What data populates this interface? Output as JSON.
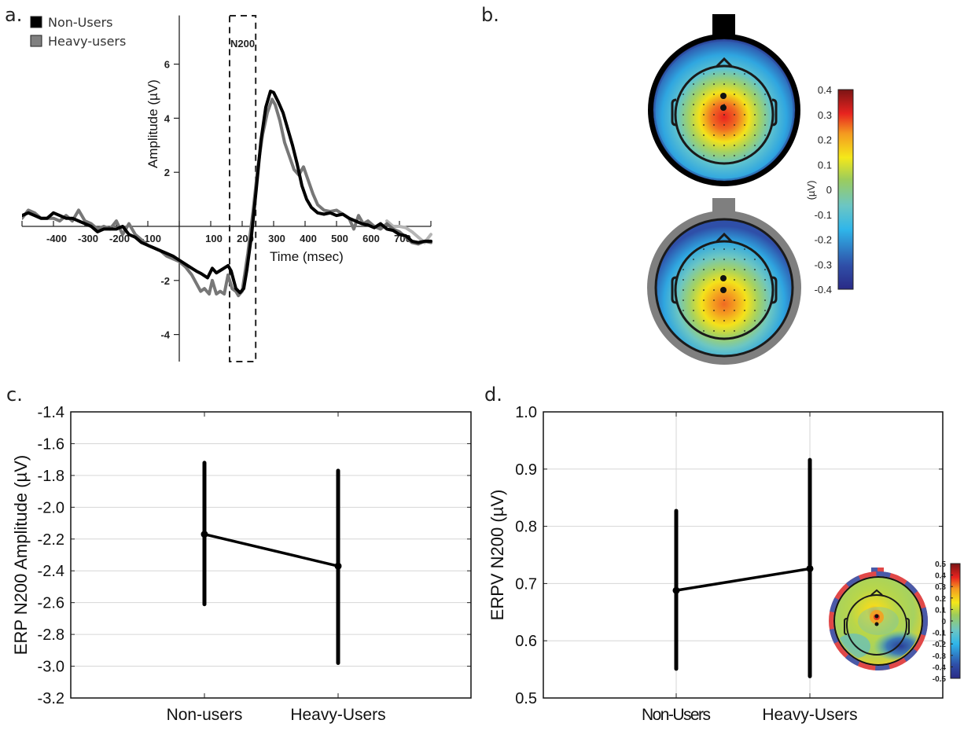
{
  "panels": {
    "a": "a.",
    "b": "b.",
    "c": "c.",
    "d": "d."
  },
  "chart_data": [
    {
      "id": "a",
      "type": "line",
      "title": "",
      "xlabel": "Time (msec)",
      "ylabel": "Amplitude (µV)",
      "xlim": [
        -500,
        800
      ],
      "ylim": [
        -5,
        7.8
      ],
      "xticks": [
        -500,
        -400,
        -300,
        -200,
        -100,
        0,
        100,
        200,
        300,
        400,
        500,
        600,
        700,
        800
      ],
      "xtick_labels": [
        "",
        "-400",
        "-300",
        "-200",
        "-100",
        "",
        "100",
        "200",
        "300",
        "400",
        "500",
        "600",
        "700",
        ""
      ],
      "yticks": [
        6,
        4,
        2,
        -2,
        -4
      ],
      "ytick_labels": [
        "6",
        "4",
        "2",
        "-2",
        "-4"
      ],
      "legend": {
        "position": "top-left",
        "entries": [
          {
            "name": "Non-Users",
            "color": "#000000"
          },
          {
            "name": "Heavy-users",
            "color": "#777777"
          }
        ]
      },
      "annotation": {
        "label": "N200",
        "window_ms": [
          160,
          243
        ]
      },
      "series": [
        {
          "name": "Non-Users",
          "color": "#000000",
          "x": [
            -500,
            -480,
            -460,
            -440,
            -420,
            -400,
            -380,
            -360,
            -340,
            -320,
            -300,
            -280,
            -260,
            -240,
            -220,
            -200,
            -180,
            -160,
            -140,
            -120,
            -100,
            -80,
            -60,
            -40,
            -20,
            0,
            20,
            40,
            55,
            70,
            90,
            105,
            118,
            135,
            155,
            165,
            180,
            193,
            205,
            215,
            230,
            245,
            260,
            275,
            290,
            300,
            315,
            330,
            345,
            360,
            375,
            390,
            405,
            420,
            440,
            460,
            480,
            500,
            520,
            540,
            560,
            580,
            600,
            620,
            640,
            660,
            680,
            700,
            720,
            740,
            760,
            780,
            800
          ],
          "y": [
            0.4,
            0.5,
            0.4,
            0.3,
            0.3,
            0.5,
            0.4,
            0.3,
            0.3,
            0.2,
            0.1,
            0.0,
            -0.2,
            -0.1,
            -0.1,
            -0.1,
            0.0,
            -0.3,
            -0.4,
            -0.6,
            -0.7,
            -0.8,
            -0.9,
            -1.0,
            -1.1,
            -1.25,
            -1.4,
            -1.55,
            -1.66,
            -1.75,
            -1.9,
            -1.55,
            -1.72,
            -1.6,
            -1.45,
            -1.65,
            -2.3,
            -2.45,
            -2.3,
            -1.6,
            -0.3,
            1.4,
            3.2,
            4.4,
            5.0,
            4.95,
            4.6,
            4.2,
            3.6,
            3.0,
            2.3,
            1.5,
            1.0,
            0.7,
            0.5,
            0.45,
            0.5,
            0.4,
            0.45,
            0.3,
            0.2,
            0.1,
            0.05,
            -0.05,
            0.1,
            -0.1,
            -0.15,
            -0.3,
            -0.35,
            -0.55,
            -0.6,
            -0.55,
            -0.55
          ]
        },
        {
          "name": "Heavy-users",
          "color": "#777777",
          "x": [
            -500,
            -480,
            -460,
            -440,
            -420,
            -400,
            -380,
            -360,
            -340,
            -320,
            -300,
            -280,
            -260,
            -240,
            -220,
            -200,
            -180,
            -160,
            -140,
            -120,
            -100,
            -80,
            -60,
            -40,
            -20,
            0,
            20,
            40,
            68,
            80,
            95,
            105,
            118,
            130,
            143,
            155,
            168,
            180,
            188,
            200,
            218,
            235,
            250,
            265,
            280,
            295,
            305,
            320,
            335,
            350,
            365,
            380,
            395,
            410,
            425,
            440,
            460,
            480,
            500,
            520,
            540,
            555,
            570,
            585,
            600,
            620,
            640,
            660
          ],
          "y": [
            0.3,
            0.6,
            0.5,
            0.3,
            0.3,
            0.3,
            0.2,
            0.4,
            0.2,
            0.6,
            0.2,
            0.1,
            -0.1,
            0.0,
            -0.1,
            0.2,
            -0.3,
            0.1,
            -0.3,
            -0.5,
            -0.7,
            -0.8,
            -0.9,
            -1.1,
            -1.2,
            -1.3,
            -1.5,
            -1.8,
            -2.4,
            -2.3,
            -2.5,
            -2.0,
            -2.5,
            -2.4,
            -2.5,
            -1.8,
            -2.3,
            -2.4,
            -2.56,
            -2.4,
            -1.0,
            0.6,
            2.2,
            3.4,
            4.2,
            4.7,
            4.5,
            3.9,
            3.1,
            2.6,
            2.1,
            1.9,
            2.2,
            1.7,
            1.2,
            0.8,
            0.6,
            0.55,
            0.6,
            0.45,
            0.3,
            -0.1,
            0.4,
            0.1,
            0.2,
            0.0,
            -0.1,
            0.1
          ]
        },
        {
          "name": "Heavy-users (tail, light)",
          "color": "#b5b5b5",
          "x": [
            660,
            680,
            700,
            720,
            740,
            760,
            780,
            800
          ],
          "y": [
            0.2,
            0.0,
            0.0,
            -0.05,
            -0.2,
            -0.4,
            -0.6,
            -0.3
          ]
        },
        {
          "name": "Heavy-users (tail, dark)",
          "color": "#6e6e6e",
          "x": [
            660,
            680,
            700,
            720,
            740,
            760,
            780,
            800
          ],
          "y": [
            0.1,
            -0.1,
            -0.2,
            -0.4,
            -0.6,
            -0.65,
            -0.55,
            -0.6
          ]
        }
      ]
    },
    {
      "id": "b",
      "type": "heatmap",
      "title": "",
      "description": "Scalp topographies (top: Non-Users, bottom: Heavy-users)",
      "colorbar": {
        "label": "(µV)",
        "range": [
          -0.4,
          0.4
        ],
        "ticks": [
          "0.4",
          "0.3",
          "0.2",
          "0.1",
          "0",
          "-0.1",
          "-0.2",
          "-0.3",
          "-0.4"
        ]
      },
      "maps": [
        {
          "group": "Non-Users",
          "ring_color": "#000000",
          "peak_value": 0.32,
          "peak_location": "central-parietal",
          "edge_value": -0.3
        },
        {
          "group": "Heavy-users",
          "ring_color": "#7f7f7f",
          "peak_value": 0.25,
          "peak_location": "central-parietal",
          "edge_value": -0.3
        }
      ]
    },
    {
      "id": "c",
      "type": "line",
      "title": "",
      "xlabel": "",
      "ylabel": "ERP N200 Amplitude (µV)",
      "categories": [
        "Non-users",
        "Heavy-Users"
      ],
      "ylim": [
        -3.2,
        -1.4
      ],
      "yticks": [
        "-1.4",
        "-1.6",
        "-1.8",
        "-2.0",
        "-2.2",
        "-2.4",
        "-2.6",
        "-2.8",
        "-3.0",
        "-3.2"
      ],
      "grid": true,
      "series": [
        {
          "name": "mean",
          "values": [
            -2.17,
            -2.37
          ],
          "err_low": [
            -2.61,
            -2.98
          ],
          "err_high": [
            -1.72,
            -1.77
          ]
        }
      ]
    },
    {
      "id": "d",
      "type": "line",
      "title": "",
      "xlabel": "",
      "ylabel": "ERPV N200 (µV)",
      "categories": [
        "Non-Users",
        "Heavy-Users"
      ],
      "ylim": [
        0.5,
        1.0
      ],
      "yticks": [
        "1.0",
        "0.9",
        "0.8",
        "0.7",
        "0.6",
        "0.5"
      ],
      "grid": true,
      "series": [
        {
          "name": "mean",
          "values": [
            0.688,
            0.726
          ],
          "err_low": [
            0.551,
            0.538
          ],
          "err_high": [
            0.827,
            0.916
          ]
        }
      ],
      "inset": {
        "type": "heatmap",
        "description": "Scalp topography difference map",
        "colorbar": {
          "range": [
            -0.5,
            0.5
          ],
          "ticks": [
            "0.5",
            "0.4",
            "0.3",
            "0.2",
            "0.1",
            "0",
            "-0.1",
            "-0.2",
            "-0.3",
            "-0.4",
            "-0.5"
          ]
        }
      }
    }
  ]
}
